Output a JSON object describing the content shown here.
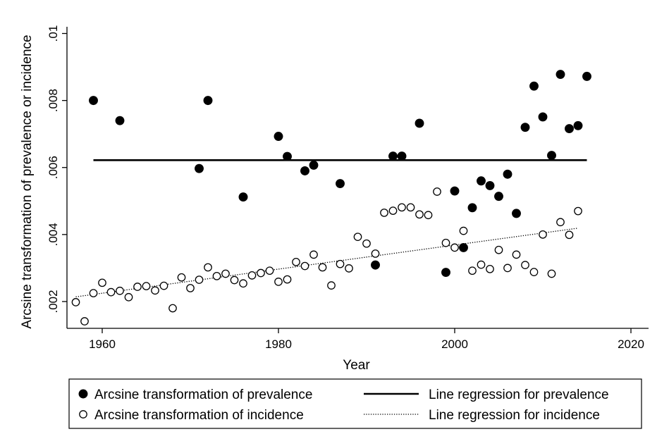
{
  "chart_data": {
    "type": "scatter",
    "title": "",
    "xlabel": "Year",
    "ylabel": "Arcsine transformation of prevalence or incidence",
    "xlim": [
      1956,
      2022
    ],
    "ylim": [
      0.0012,
      0.0102
    ],
    "xticks": [
      {
        "value": 1960,
        "label": "1960"
      },
      {
        "value": 1980,
        "label": "1980"
      },
      {
        "value": 2000,
        "label": "2000"
      },
      {
        "value": 2020,
        "label": "2020"
      }
    ],
    "yticks": [
      {
        "value": 0.002,
        "label": ".002"
      },
      {
        "value": 0.004,
        "label": ".004"
      },
      {
        "value": 0.006,
        "label": ".006"
      },
      {
        "value": 0.008,
        "label": ".008"
      },
      {
        "value": 0.01,
        "label": ".01"
      }
    ],
    "grid": false,
    "legend_position": "bottom",
    "series": [
      {
        "name": "Arcsine transformation of prevalence",
        "kind": "scatter",
        "marker": "filled-circle",
        "points": [
          [
            1959,
            0.008
          ],
          [
            1962,
            0.0074
          ],
          [
            1971,
            0.00597
          ],
          [
            1972,
            0.008
          ],
          [
            1976,
            0.00512
          ],
          [
            1980,
            0.00693
          ],
          [
            1981,
            0.00633
          ],
          [
            1983,
            0.0059
          ],
          [
            1984,
            0.00607
          ],
          [
            1987,
            0.00552
          ],
          [
            1991,
            0.00309
          ],
          [
            1993,
            0.00634
          ],
          [
            1994,
            0.00634
          ],
          [
            1996,
            0.00732
          ],
          [
            1999,
            0.00287
          ],
          [
            2000,
            0.0053
          ],
          [
            2001,
            0.00361
          ],
          [
            2002,
            0.0048
          ],
          [
            2003,
            0.0056
          ],
          [
            2004,
            0.00546
          ],
          [
            2005,
            0.00514
          ],
          [
            2006,
            0.0058
          ],
          [
            2007,
            0.00463
          ],
          [
            2008,
            0.0072
          ],
          [
            2009,
            0.00843
          ],
          [
            2010,
            0.00751
          ],
          [
            2011,
            0.00636
          ],
          [
            2012,
            0.00878
          ],
          [
            2013,
            0.00716
          ],
          [
            2014,
            0.00725
          ],
          [
            2015,
            0.00872
          ]
        ]
      },
      {
        "name": "Arcsine transformation of incidence",
        "kind": "scatter",
        "marker": "hollow-circle",
        "points": [
          [
            1957,
            0.00198
          ],
          [
            1958,
            0.00141
          ],
          [
            1959,
            0.00225
          ],
          [
            1960,
            0.00256
          ],
          [
            1961,
            0.00228
          ],
          [
            1962,
            0.00232
          ],
          [
            1963,
            0.00213
          ],
          [
            1964,
            0.00244
          ],
          [
            1965,
            0.00246
          ],
          [
            1966,
            0.00233
          ],
          [
            1967,
            0.00247
          ],
          [
            1968,
            0.0018
          ],
          [
            1969,
            0.00272
          ],
          [
            1970,
            0.0024
          ],
          [
            1971,
            0.00265
          ],
          [
            1972,
            0.00302
          ],
          [
            1973,
            0.00276
          ],
          [
            1974,
            0.00283
          ],
          [
            1975,
            0.00264
          ],
          [
            1976,
            0.00254
          ],
          [
            1977,
            0.00278
          ],
          [
            1978,
            0.00285
          ],
          [
            1979,
            0.00292
          ],
          [
            1980,
            0.00259
          ],
          [
            1981,
            0.00266
          ],
          [
            1982,
            0.00318
          ],
          [
            1983,
            0.00306
          ],
          [
            1984,
            0.0034
          ],
          [
            1985,
            0.00302
          ],
          [
            1986,
            0.00248
          ],
          [
            1987,
            0.00312
          ],
          [
            1988,
            0.00299
          ],
          [
            1989,
            0.00393
          ],
          [
            1990,
            0.00373
          ],
          [
            1991,
            0.00343
          ],
          [
            1992,
            0.00465
          ],
          [
            1993,
            0.00471
          ],
          [
            1994,
            0.00481
          ],
          [
            1995,
            0.00481
          ],
          [
            1996,
            0.0046
          ],
          [
            1997,
            0.00458
          ],
          [
            1998,
            0.00528
          ],
          [
            1999,
            0.00375
          ],
          [
            2000,
            0.00361
          ],
          [
            2001,
            0.00411
          ],
          [
            2002,
            0.00292
          ],
          [
            2003,
            0.0031
          ],
          [
            2004,
            0.00297
          ],
          [
            2005,
            0.00354
          ],
          [
            2006,
            0.003
          ],
          [
            2007,
            0.0034
          ],
          [
            2008,
            0.00309
          ],
          [
            2009,
            0.00288
          ],
          [
            2010,
            0.004
          ],
          [
            2011,
            0.00283
          ],
          [
            2012,
            0.00437
          ],
          [
            2013,
            0.00399
          ],
          [
            2014,
            0.0047
          ]
        ]
      },
      {
        "name": "Line regression for prevalence",
        "kind": "line",
        "style": "solid",
        "points": [
          [
            1959,
            0.00622
          ],
          [
            2015,
            0.00622
          ]
        ]
      },
      {
        "name": "Line regression for incidence",
        "kind": "line",
        "style": "dotted",
        "points": [
          [
            1957,
            0.00214
          ],
          [
            2014,
            0.00419
          ]
        ]
      }
    ]
  }
}
